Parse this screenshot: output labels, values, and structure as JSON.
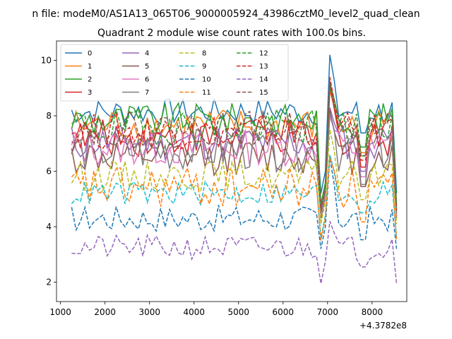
{
  "chart_data": {
    "type": "line",
    "suptitle": "n file: modeM0/AS1A13_065T06_9000005924_43986cztM0_level2_quad_clean",
    "title": "Quadrant 2 module wise count rates with 100.0s bins.",
    "xlabel": "",
    "ylabel": "",
    "x_offset_label": "+4.3782e8",
    "xlim": [
      910,
      8780
    ],
    "ylim": [
      1.3,
      10.7
    ],
    "x_ticks": [
      1000,
      2000,
      3000,
      4000,
      5000,
      6000,
      7000,
      8000
    ],
    "y_ticks": [
      2,
      4,
      6,
      8,
      10
    ],
    "grid": false,
    "legend_position": "top-left",
    "legend_columns": 4,
    "x": [
      1250,
      1350,
      1450,
      1550,
      1650,
      1750,
      1850,
      1950,
      2050,
      2150,
      2250,
      2350,
      2450,
      2550,
      2650,
      2750,
      2850,
      2950,
      3050,
      3150,
      3250,
      3350,
      3450,
      3550,
      3650,
      3750,
      3850,
      3950,
      4050,
      4150,
      4250,
      4350,
      4450,
      4550,
      4650,
      4750,
      4850,
      4950,
      5050,
      5150,
      5250,
      5350,
      5450,
      5550,
      5650,
      5750,
      5850,
      5950,
      6050,
      6150,
      6250,
      6350,
      6450,
      6550,
      6650,
      6750,
      6850,
      6950,
      7050,
      7150,
      7250,
      7350,
      7450,
      7550,
      7650,
      7750,
      7850,
      7950,
      8050,
      8150,
      8250,
      8350,
      8450,
      8550
    ],
    "series": [
      {
        "name": "0",
        "color": "#1f77b4",
        "dash": false,
        "base": 8.15,
        "amp": 0.22,
        "peak": 10.2,
        "fall": 5.2
      },
      {
        "name": "1",
        "color": "#ff7f0e",
        "dash": false,
        "base": 7.65,
        "amp": 0.28,
        "peak": 8.9,
        "fall": 4.4
      },
      {
        "name": "2",
        "color": "#2ca02c",
        "dash": false,
        "base": 7.85,
        "amp": 0.28,
        "peak": 9.2,
        "fall": 4.8
      },
      {
        "name": "3",
        "color": "#d62728",
        "dash": false,
        "base": 7.2,
        "amp": 0.3,
        "peak": 9.1,
        "fall": 4.5
      },
      {
        "name": "4",
        "color": "#9467bd",
        "dash": false,
        "base": 7.05,
        "amp": 0.3,
        "peak": 8.3,
        "fall": 4.6
      },
      {
        "name": "5",
        "color": "#8c564b",
        "dash": false,
        "base": 6.5,
        "amp": 0.3,
        "peak": 8.2,
        "fall": 4.3
      },
      {
        "name": "6",
        "color": "#e377c2",
        "dash": false,
        "base": 6.85,
        "amp": 0.3,
        "peak": 8.0,
        "fall": 4.4
      },
      {
        "name": "7",
        "color": "#7f7f7f",
        "dash": false,
        "base": 6.75,
        "amp": 0.35,
        "peak": 8.1,
        "fall": 4.5
      },
      {
        "name": "8",
        "color": "#bcbd22",
        "dash": true,
        "base": 5.85,
        "amp": 0.25,
        "peak": 7.5,
        "fall": 4.1
      },
      {
        "name": "9",
        "color": "#17becf",
        "dash": true,
        "base": 5.2,
        "amp": 0.2,
        "peak": 6.6,
        "fall": 3.6
      },
      {
        "name": "10",
        "color": "#1f77b4",
        "dash": true,
        "base": 4.3,
        "amp": 0.22,
        "peak": 6.5,
        "fall": 3.2
      },
      {
        "name": "11",
        "color": "#ff7f0e",
        "dash": true,
        "base": 5.4,
        "amp": 0.35,
        "peak": 6.5,
        "fall": 3.5
      },
      {
        "name": "12",
        "color": "#2ca02c",
        "dash": true,
        "base": 7.6,
        "amp": 0.3,
        "peak": 9.1,
        "fall": 4.7
      },
      {
        "name": "13",
        "color": "#d62728",
        "dash": true,
        "base": 7.45,
        "amp": 0.3,
        "peak": 9.4,
        "fall": 4.6
      },
      {
        "name": "14",
        "color": "#9467bd",
        "dash": true,
        "base": 3.25,
        "amp": 0.2,
        "peak": 4.2,
        "fall": 1.95
      },
      {
        "name": "15",
        "color": "#8c564b",
        "dash": true,
        "base": 7.55,
        "amp": 0.28,
        "peak": 9.2,
        "fall": 4.6
      }
    ]
  }
}
